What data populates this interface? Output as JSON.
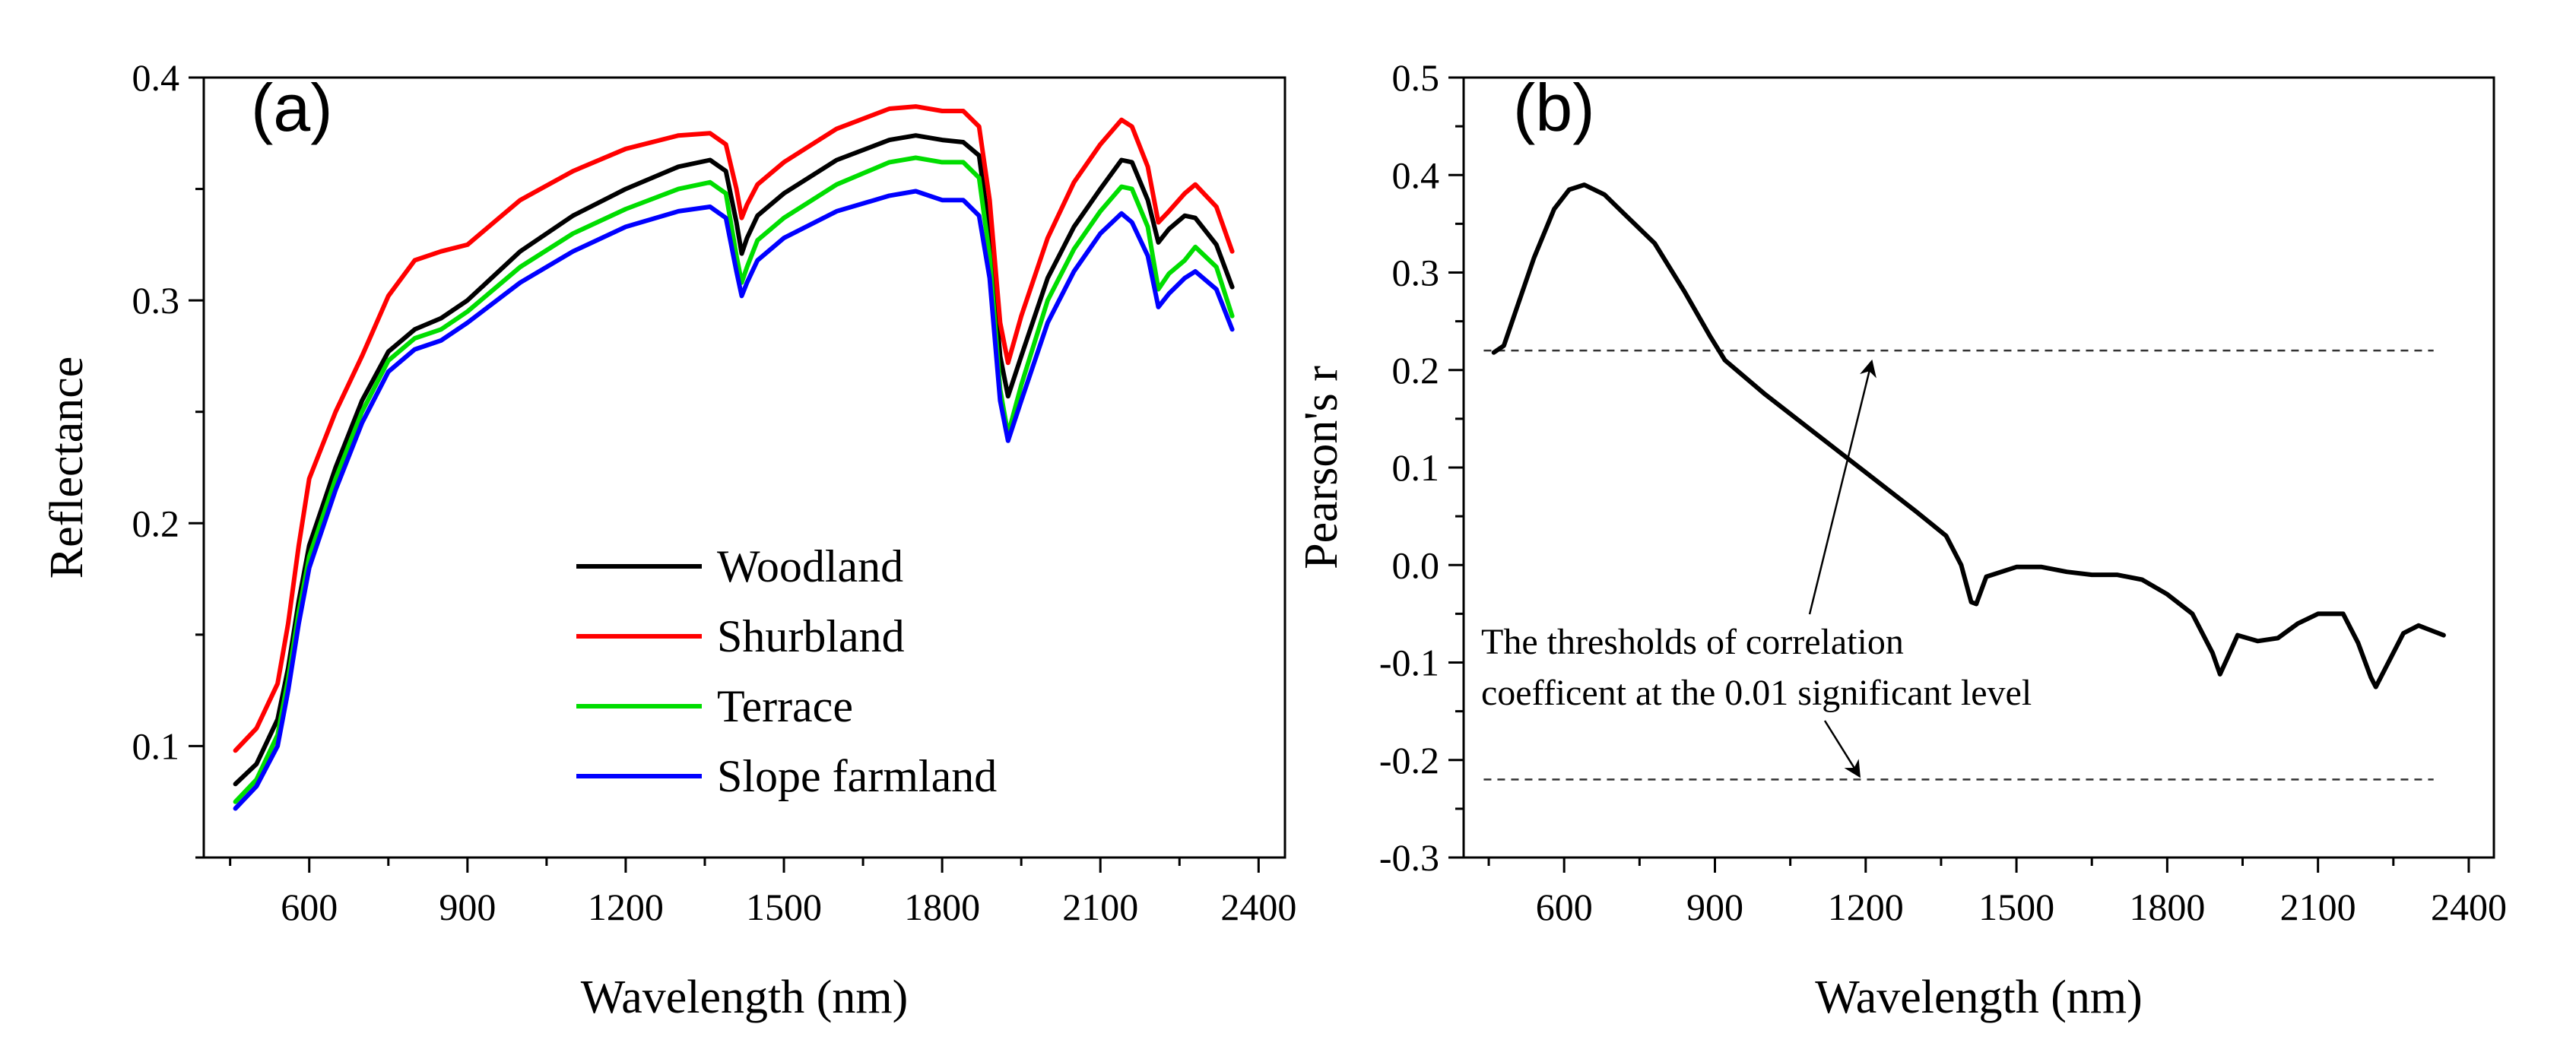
{
  "chart_data": [
    {
      "type": "line",
      "panel_label": "(a)",
      "title": "",
      "xlabel": "Wavelength (nm)",
      "ylabel": "Reflectance",
      "xlim": [
        400,
        2450
      ],
      "ylim": [
        0.05,
        0.4
      ],
      "xticks": [
        600,
        900,
        1200,
        1500,
        1800,
        2100,
        2400
      ],
      "yticks": [
        0.1,
        0.2,
        0.3,
        0.4
      ],
      "ytick_labels": [
        "0.1",
        "0.2",
        "0.3",
        "0.4"
      ],
      "grid": false,
      "legend_position": "lower-right",
      "series": [
        {
          "name": "Woodland",
          "color": "#000000",
          "points": [
            [
              460,
              0.083
            ],
            [
              500,
              0.092
            ],
            [
              540,
              0.112
            ],
            [
              560,
              0.135
            ],
            [
              580,
              0.165
            ],
            [
              600,
              0.19
            ],
            [
              650,
              0.225
            ],
            [
              700,
              0.255
            ],
            [
              750,
              0.277
            ],
            [
              800,
              0.287
            ],
            [
              850,
              0.292
            ],
            [
              900,
              0.3
            ],
            [
              1000,
              0.322
            ],
            [
              1100,
              0.338
            ],
            [
              1200,
              0.35
            ],
            [
              1300,
              0.36
            ],
            [
              1360,
              0.363
            ],
            [
              1390,
              0.358
            ],
            [
              1410,
              0.335
            ],
            [
              1420,
              0.321
            ],
            [
              1430,
              0.328
            ],
            [
              1450,
              0.338
            ],
            [
              1500,
              0.348
            ],
            [
              1600,
              0.363
            ],
            [
              1700,
              0.372
            ],
            [
              1750,
              0.374
            ],
            [
              1800,
              0.372
            ],
            [
              1840,
              0.371
            ],
            [
              1870,
              0.365
            ],
            [
              1890,
              0.33
            ],
            [
              1910,
              0.275
            ],
            [
              1925,
              0.257
            ],
            [
              1950,
              0.275
            ],
            [
              2000,
              0.31
            ],
            [
              2050,
              0.333
            ],
            [
              2100,
              0.35
            ],
            [
              2140,
              0.363
            ],
            [
              2160,
              0.362
            ],
            [
              2190,
              0.345
            ],
            [
              2210,
              0.326
            ],
            [
              2230,
              0.332
            ],
            [
              2260,
              0.338
            ],
            [
              2280,
              0.337
            ],
            [
              2320,
              0.325
            ],
            [
              2350,
              0.306
            ]
          ]
        },
        {
          "name": "Shurbland",
          "color": "#ff0000",
          "points": [
            [
              460,
              0.098
            ],
            [
              500,
              0.108
            ],
            [
              540,
              0.128
            ],
            [
              560,
              0.155
            ],
            [
              580,
              0.19
            ],
            [
              600,
              0.22
            ],
            [
              650,
              0.25
            ],
            [
              700,
              0.275
            ],
            [
              750,
              0.302
            ],
            [
              800,
              0.318
            ],
            [
              850,
              0.322
            ],
            [
              900,
              0.325
            ],
            [
              950,
              0.335
            ],
            [
              1000,
              0.345
            ],
            [
              1100,
              0.358
            ],
            [
              1200,
              0.368
            ],
            [
              1300,
              0.374
            ],
            [
              1360,
              0.375
            ],
            [
              1390,
              0.37
            ],
            [
              1410,
              0.35
            ],
            [
              1420,
              0.337
            ],
            [
              1430,
              0.343
            ],
            [
              1450,
              0.352
            ],
            [
              1500,
              0.362
            ],
            [
              1600,
              0.377
            ],
            [
              1700,
              0.386
            ],
            [
              1750,
              0.387
            ],
            [
              1800,
              0.385
            ],
            [
              1840,
              0.385
            ],
            [
              1870,
              0.378
            ],
            [
              1890,
              0.345
            ],
            [
              1910,
              0.29
            ],
            [
              1925,
              0.272
            ],
            [
              1950,
              0.293
            ],
            [
              2000,
              0.328
            ],
            [
              2050,
              0.353
            ],
            [
              2100,
              0.37
            ],
            [
              2140,
              0.381
            ],
            [
              2160,
              0.378
            ],
            [
              2190,
              0.36
            ],
            [
              2210,
              0.335
            ],
            [
              2230,
              0.34
            ],
            [
              2260,
              0.348
            ],
            [
              2280,
              0.352
            ],
            [
              2320,
              0.342
            ],
            [
              2350,
              0.322
            ]
          ]
        },
        {
          "name": "Terrace",
          "color": "#00dd00",
          "points": [
            [
              460,
              0.075
            ],
            [
              500,
              0.085
            ],
            [
              540,
              0.105
            ],
            [
              560,
              0.13
            ],
            [
              580,
              0.16
            ],
            [
              600,
              0.185
            ],
            [
              650,
              0.22
            ],
            [
              700,
              0.25
            ],
            [
              750,
              0.273
            ],
            [
              800,
              0.283
            ],
            [
              850,
              0.287
            ],
            [
              900,
              0.295
            ],
            [
              1000,
              0.315
            ],
            [
              1100,
              0.33
            ],
            [
              1200,
              0.341
            ],
            [
              1300,
              0.35
            ],
            [
              1360,
              0.353
            ],
            [
              1390,
              0.348
            ],
            [
              1410,
              0.32
            ],
            [
              1420,
              0.308
            ],
            [
              1430,
              0.315
            ],
            [
              1450,
              0.327
            ],
            [
              1500,
              0.337
            ],
            [
              1600,
              0.352
            ],
            [
              1700,
              0.362
            ],
            [
              1750,
              0.364
            ],
            [
              1800,
              0.362
            ],
            [
              1840,
              0.362
            ],
            [
              1870,
              0.355
            ],
            [
              1890,
              0.32
            ],
            [
              1910,
              0.26
            ],
            [
              1925,
              0.24
            ],
            [
              1950,
              0.262
            ],
            [
              2000,
              0.3
            ],
            [
              2050,
              0.323
            ],
            [
              2100,
              0.34
            ],
            [
              2140,
              0.351
            ],
            [
              2160,
              0.35
            ],
            [
              2190,
              0.333
            ],
            [
              2210,
              0.305
            ],
            [
              2230,
              0.312
            ],
            [
              2260,
              0.318
            ],
            [
              2280,
              0.324
            ],
            [
              2320,
              0.315
            ],
            [
              2350,
              0.293
            ]
          ]
        },
        {
          "name": "Slope farmland",
          "color": "#0000ff",
          "points": [
            [
              460,
              0.072
            ],
            [
              500,
              0.082
            ],
            [
              540,
              0.1
            ],
            [
              560,
              0.125
            ],
            [
              580,
              0.155
            ],
            [
              600,
              0.18
            ],
            [
              650,
              0.215
            ],
            [
              700,
              0.245
            ],
            [
              750,
              0.268
            ],
            [
              800,
              0.278
            ],
            [
              850,
              0.282
            ],
            [
              900,
              0.29
            ],
            [
              1000,
              0.308
            ],
            [
              1100,
              0.322
            ],
            [
              1200,
              0.333
            ],
            [
              1300,
              0.34
            ],
            [
              1360,
              0.342
            ],
            [
              1390,
              0.337
            ],
            [
              1410,
              0.313
            ],
            [
              1420,
              0.302
            ],
            [
              1430,
              0.308
            ],
            [
              1450,
              0.318
            ],
            [
              1500,
              0.328
            ],
            [
              1600,
              0.34
            ],
            [
              1700,
              0.347
            ],
            [
              1750,
              0.349
            ],
            [
              1800,
              0.345
            ],
            [
              1840,
              0.345
            ],
            [
              1870,
              0.338
            ],
            [
              1890,
              0.31
            ],
            [
              1910,
              0.255
            ],
            [
              1925,
              0.237
            ],
            [
              1950,
              0.255
            ],
            [
              2000,
              0.29
            ],
            [
              2050,
              0.313
            ],
            [
              2100,
              0.33
            ],
            [
              2140,
              0.339
            ],
            [
              2160,
              0.335
            ],
            [
              2190,
              0.32
            ],
            [
              2210,
              0.297
            ],
            [
              2230,
              0.303
            ],
            [
              2260,
              0.31
            ],
            [
              2280,
              0.313
            ],
            [
              2320,
              0.305
            ],
            [
              2350,
              0.287
            ]
          ]
        }
      ]
    },
    {
      "type": "line",
      "panel_label": "(b)",
      "title": "",
      "xlabel": "Wavelength (nm)",
      "ylabel": "Pearson's r",
      "xlim": [
        400,
        2450
      ],
      "ylim": [
        -0.3,
        0.5
      ],
      "xticks": [
        600,
        900,
        1200,
        1500,
        1800,
        2100,
        2400
      ],
      "yticks": [
        -0.3,
        -0.2,
        -0.1,
        0.0,
        0.1,
        0.2,
        0.3,
        0.4,
        0.5
      ],
      "ytick_labels": [
        "-0.3",
        "-0.2",
        "-0.1",
        "0.0",
        "0.1",
        "0.2",
        "0.3",
        "0.4",
        "0.5"
      ],
      "grid": false,
      "thresholds": [
        0.22,
        -0.22
      ],
      "annotation_lines": [
        "The thresholds of correlation",
        "coefficent at the 0.01 significant level"
      ],
      "series": [
        {
          "color": "#000000",
          "points": [
            [
              460,
              0.218
            ],
            [
              480,
              0.225
            ],
            [
              500,
              0.255
            ],
            [
              540,
              0.315
            ],
            [
              580,
              0.365
            ],
            [
              610,
              0.385
            ],
            [
              640,
              0.39
            ],
            [
              680,
              0.38
            ],
            [
              720,
              0.36
            ],
            [
              780,
              0.33
            ],
            [
              840,
              0.28
            ],
            [
              890,
              0.235
            ],
            [
              920,
              0.21
            ],
            [
              1000,
              0.175
            ],
            [
              1100,
              0.135
            ],
            [
              1200,
              0.095
            ],
            [
              1300,
              0.055
            ],
            [
              1360,
              0.03
            ],
            [
              1390,
              0.0
            ],
            [
              1410,
              -0.038
            ],
            [
              1420,
              -0.04
            ],
            [
              1440,
              -0.012
            ],
            [
              1500,
              -0.002
            ],
            [
              1550,
              -0.002
            ],
            [
              1600,
              -0.007
            ],
            [
              1650,
              -0.01
            ],
            [
              1700,
              -0.01
            ],
            [
              1750,
              -0.015
            ],
            [
              1800,
              -0.03
            ],
            [
              1850,
              -0.05
            ],
            [
              1890,
              -0.09
            ],
            [
              1905,
              -0.112
            ],
            [
              1920,
              -0.095
            ],
            [
              1940,
              -0.072
            ],
            [
              1980,
              -0.078
            ],
            [
              2020,
              -0.075
            ],
            [
              2060,
              -0.06
            ],
            [
              2100,
              -0.05
            ],
            [
              2150,
              -0.05
            ],
            [
              2180,
              -0.08
            ],
            [
              2205,
              -0.115
            ],
            [
              2215,
              -0.125
            ],
            [
              2240,
              -0.1
            ],
            [
              2270,
              -0.07
            ],
            [
              2300,
              -0.062
            ],
            [
              2330,
              -0.068
            ],
            [
              2350,
              -0.072
            ]
          ]
        }
      ]
    }
  ]
}
